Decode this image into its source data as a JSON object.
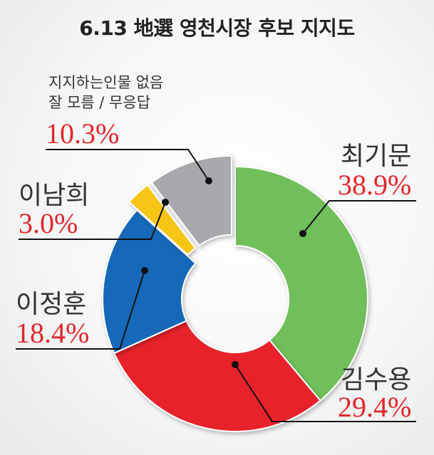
{
  "chart_data": {
    "type": "pie",
    "title": "6.13 地選 영천시장 후보 지지도",
    "donut": true,
    "slices": [
      {
        "label": "최기문",
        "value": 38.9,
        "value_label": "38.9%",
        "color": "#6fbf5a"
      },
      {
        "label": "김수용",
        "value": 29.4,
        "value_label": "29.4%",
        "color": "#e8232a"
      },
      {
        "label": "이정훈",
        "value": 18.4,
        "value_label": "18.4%",
        "color": "#1769b8"
      },
      {
        "label": "이남희",
        "value": 3.0,
        "value_label": "3.0%",
        "color": "#f7c514"
      },
      {
        "label": "지지하는인물 없음\n잘 모름 / 무응답",
        "value": 10.3,
        "value_label": "10.3%",
        "color": "#a7a9ac"
      }
    ],
    "other_label_line1": "지지하는인물 없음",
    "other_label_line2": "잘 모름 / 무응답"
  },
  "colors": {
    "percent_text": "#e3262b",
    "leader_line": "#111111"
  }
}
